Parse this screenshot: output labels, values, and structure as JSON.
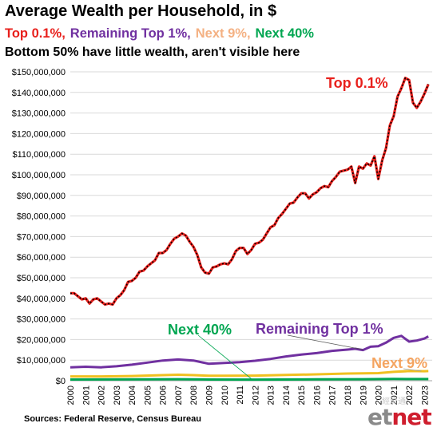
{
  "title": "Average Wealth per Household, in $",
  "legend_line": [
    {
      "label": "Top 0.1%,",
      "color": "#e8201c"
    },
    {
      "label": "Remaining Top 1%,",
      "color": "#7030a0"
    },
    {
      "label": "Next 9%,",
      "color": "#f4b183"
    },
    {
      "label": "Next 40%",
      "color": "#00a651"
    }
  ],
  "note": "Bottom 50% have little wealth, aren't visible here",
  "source": "Sources: Federal Reserve, Census Bureau",
  "logo": {
    "main": "et",
    "accent": "net",
    "mark": "經濟通"
  },
  "chart_data": {
    "type": "line",
    "x_categories": [
      "2000",
      "2001",
      "2002",
      "2003",
      "2004",
      "2005",
      "2006",
      "2007",
      "2008",
      "2009",
      "2010",
      "2011",
      "2012",
      "2013",
      "2014",
      "2015",
      "2016",
      "2017",
      "2018",
      "2019",
      "2020",
      "2021",
      "2022",
      "2023"
    ],
    "y_ticks": [
      "$0",
      "$10,000,000",
      "$20,000,000",
      "$30,000,000",
      "$40,000,000",
      "$50,000,000",
      "$60,000,000",
      "$70,000,000",
      "$80,000,000",
      "$90,000,000",
      "$100,000,000",
      "$110,000,000",
      "$120,000,000",
      "$130,000,000",
      "$140,000,000",
      "$150,000,000"
    ],
    "ylim": [
      0,
      150000000
    ],
    "grid": true,
    "series": [
      {
        "name": "Top 0.1%",
        "color": "#e8201c",
        "x": [
          2000,
          2000.25,
          2000.5,
          2000.75,
          2001,
          2001.25,
          2001.5,
          2001.75,
          2002,
          2002.25,
          2002.5,
          2002.75,
          2003,
          2003.25,
          2003.5,
          2003.75,
          2004,
          2004.25,
          2004.5,
          2004.75,
          2005,
          2005.25,
          2005.5,
          2005.75,
          2006,
          2006.25,
          2006.5,
          2006.75,
          2007,
          2007.25,
          2007.5,
          2007.75,
          2008,
          2008.25,
          2008.5,
          2008.75,
          2009,
          2009.25,
          2009.5,
          2009.75,
          2010,
          2010.25,
          2010.5,
          2010.75,
          2011,
          2011.25,
          2011.5,
          2011.75,
          2012,
          2012.25,
          2012.5,
          2012.75,
          2013,
          2013.25,
          2013.5,
          2013.75,
          2014,
          2014.25,
          2014.5,
          2014.75,
          2015,
          2015.25,
          2015.5,
          2015.75,
          2016,
          2016.25,
          2016.5,
          2016.75,
          2017,
          2017.25,
          2017.5,
          2017.75,
          2018,
          2018.25,
          2018.5,
          2018.75,
          2019,
          2019.25,
          2019.5,
          2019.75,
          2020,
          2020.25,
          2020.5,
          2020.75,
          2021,
          2021.25,
          2021.5,
          2021.75,
          2022,
          2022.25,
          2022.5,
          2022.75,
          2023,
          2023.25
        ],
        "y": [
          42500000,
          42500000,
          41000000,
          39500000,
          40000000,
          37500000,
          39500000,
          40000000,
          38500000,
          37000000,
          37500000,
          37000000,
          40000000,
          41500000,
          44000000,
          48000000,
          48500000,
          50000000,
          53000000,
          53500000,
          55500000,
          57000000,
          58500000,
          62000000,
          62000000,
          63500000,
          66500000,
          69000000,
          70000000,
          71500000,
          70500000,
          67500000,
          65000000,
          61000000,
          55000000,
          52500000,
          52000000,
          55000000,
          55500000,
          56500000,
          57000000,
          56500000,
          59000000,
          63000000,
          64500000,
          64500000,
          61500000,
          63500000,
          66500000,
          67000000,
          68500000,
          71500000,
          74500000,
          75500000,
          79000000,
          81000000,
          83500000,
          86000000,
          86500000,
          89000000,
          91000000,
          91000000,
          88500000,
          90500000,
          91500000,
          93500000,
          94500000,
          94000000,
          97000000,
          99000000,
          101500000,
          102000000,
          102500000,
          104000000,
          96000000,
          104000000,
          103000000,
          105500000,
          104500000,
          109000000,
          98000000,
          107000000,
          113000000,
          124000000,
          128500000,
          138000000,
          142000000,
          147000000,
          146000000,
          135000000,
          132500000,
          135500000,
          139500000,
          144000000
        ]
      },
      {
        "name": "Remaining Top 1%",
        "color": "#7030a0",
        "x": [
          2000,
          2001,
          2002,
          2003,
          2004,
          2005,
          2006,
          2007,
          2008,
          2009,
          2010,
          2011,
          2012,
          2013,
          2014,
          2015,
          2016,
          2017,
          2018,
          2018.5,
          2019,
          2019.5,
          2020,
          2020.5,
          2021,
          2021.5,
          2022,
          2022.5,
          2023,
          2023.25
        ],
        "y": [
          6500000,
          6800000,
          6500000,
          7000000,
          7800000,
          8800000,
          9800000,
          10300000,
          9800000,
          8200000,
          8600000,
          9000000,
          9700000,
          10600000,
          11800000,
          12700000,
          13400000,
          14500000,
          15100000,
          15500000,
          14900000,
          16500000,
          16800000,
          18500000,
          20800000,
          21800000,
          19000000,
          19500000,
          20500000,
          21500000
        ]
      },
      {
        "name": "Next 9%",
        "color": "#f0c020",
        "x": [
          2000,
          2002,
          2004,
          2006,
          2007,
          2008,
          2009,
          2010,
          2012,
          2014,
          2016,
          2018,
          2019,
          2020,
          2021,
          2022,
          2023,
          2023.25
        ],
        "y": [
          2100000,
          2100000,
          2300000,
          2700000,
          2900000,
          2700000,
          2400000,
          2400000,
          2500000,
          2800000,
          3100000,
          3500000,
          3600000,
          3700000,
          4300000,
          4700000,
          4600000,
          4700000
        ]
      },
      {
        "name": "Next 40%",
        "color": "#00a651",
        "x": [
          2000,
          2005,
          2007,
          2009,
          2012,
          2016,
          2019,
          2021,
          2023,
          2023.25
        ],
        "y": [
          600000,
          700000,
          750000,
          600000,
          550000,
          650000,
          750000,
          850000,
          800000,
          800000
        ]
      }
    ],
    "annotations": [
      {
        "text": "Top 0.1%",
        "color": "#e8201c"
      },
      {
        "text": "Remaining Top 1%",
        "color": "#7030a0"
      },
      {
        "text": "Next 40%",
        "color": "#00a651"
      },
      {
        "text": "Next 9%",
        "color": "#f4a460"
      }
    ]
  }
}
